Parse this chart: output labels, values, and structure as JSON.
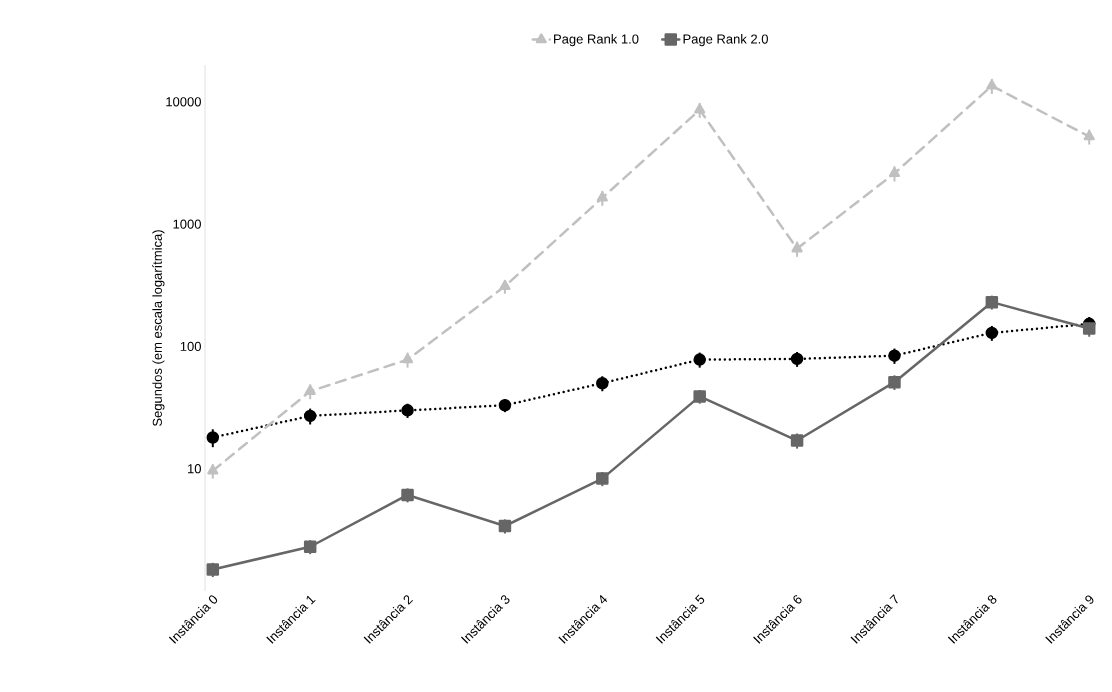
{
  "chart_data": {
    "type": "line",
    "ylabel": "Segundos (em escala logarítmica)",
    "log": "y",
    "legend": "top",
    "categories": [
      "Instância 0",
      "Instância 1",
      "Instância 2",
      "Instância 3",
      "Instância 4",
      "Instância 5",
      "Instância 6",
      "Instância 7",
      "Instância 8",
      "Instância 9"
    ],
    "ylim": [
      1,
      20000
    ],
    "yticks": [
      10,
      100,
      1000,
      10000
    ],
    "series": [
      {
        "color": "#000000",
        "marker": "circle",
        "line_style": "dotted",
        "values": [
          18,
          27,
          30,
          33,
          50,
          78,
          79,
          84,
          129,
          153
        ],
        "errors": [
          3,
          4,
          4,
          4,
          7,
          11,
          11,
          12,
          18,
          21
        ]
      },
      {
        "name": "Page Rank 1.0",
        "color": "#c0c0c0",
        "marker": "triangle",
        "line_style": "dashed",
        "values": [
          9.6,
          43,
          78,
          310,
          1640,
          8600,
          630,
          2600,
          13500,
          5200
        ],
        "errors": [
          1.3,
          6,
          11,
          40,
          230,
          1200,
          90,
          370,
          1900,
          730
        ]
      },
      {
        "name": "Page Rank 2.0",
        "color": "#666666",
        "marker": "square",
        "line_style": "solid",
        "values": [
          1.5,
          2.3,
          6.1,
          3.4,
          8.3,
          39,
          17,
          51,
          230,
          140
        ],
        "errors": [
          0.2,
          0.3,
          0.8,
          0.45,
          1.1,
          5,
          2.4,
          7,
          30,
          20
        ]
      }
    ]
  }
}
